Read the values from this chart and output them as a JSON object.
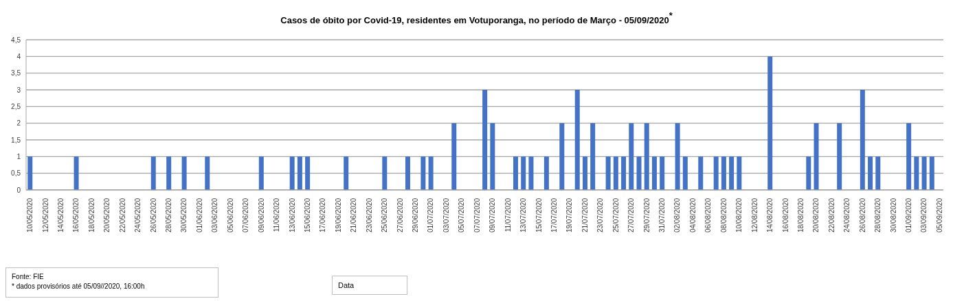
{
  "chart_data": {
    "type": "bar",
    "title": "Casos de óbito por Covid-19, residentes em Votuporanga, no período de Março - 05/09/2020$^{*}$",
    "annotations": [
      "Fonte: FIE",
      "* dados provisórios até  05/09//2020, 16:00h",
      "Data"
    ],
    "categories": [
      "10/05/2020",
      null,
      "12/05/2020",
      null,
      "14/05/2020",
      null,
      "16/05/2020",
      null,
      "18/05/2020",
      null,
      "20/05/2020",
      null,
      "22/05/2020",
      null,
      "24/05/2020",
      null,
      "26/05/2020",
      null,
      "28/05/2020",
      null,
      "30/05/2020",
      null,
      "01/06/2020",
      null,
      "03/06/2020",
      null,
      "05/06/2020",
      null,
      "07/06/2020",
      null,
      "09/06/2020",
      null,
      "11/06/2020",
      null,
      "13/06/2020",
      null,
      "15/06/2020",
      null,
      "17/06/2020",
      null,
      "19/06/2020",
      null,
      "21/06/2020",
      null,
      "23/06/2020",
      null,
      "25/06/2020",
      null,
      "27/06/2020",
      null,
      "29/06/2020",
      null,
      "01/07/2020",
      null,
      "03/07/2020",
      null,
      "05/07/2020",
      null,
      "07/07/2020",
      null,
      "09/07/2020",
      null,
      "11/07/2020",
      null,
      "13/07/2020",
      null,
      "15/07/2020",
      null,
      "17/07/2020",
      null,
      "19/07/2020",
      null,
      "21/07/2020",
      null,
      "23/07/2020",
      null,
      "25/07/2020",
      null,
      "27/07/2020",
      null,
      "29/07/2020",
      null,
      "31/07/2020",
      null,
      "02/08/2020",
      null,
      "04/08/2020",
      null,
      "06/08/2020",
      null,
      "08/08/2020",
      null,
      "10/08/2020",
      null,
      "12/08/2020",
      null,
      "14/08/2020",
      null,
      "16/08/2020",
      null,
      "18/08/2020",
      null,
      "20/08/2020",
      null,
      "22/08/2020",
      null,
      "24/08/2020",
      null,
      "26/08/2020",
      null,
      "28/08/2020",
      null,
      "30/08/2020",
      null,
      "01/09/2020",
      null,
      "03/09/2020",
      null,
      "05/09/2020"
    ],
    "values": [
      1,
      0,
      0,
      0,
      0,
      0,
      1,
      0,
      0,
      0,
      0,
      0,
      0,
      0,
      0,
      0,
      1,
      0,
      1,
      0,
      1,
      0,
      0,
      1,
      0,
      0,
      0,
      0,
      0,
      0,
      1,
      0,
      0,
      0,
      1,
      1,
      1,
      0,
      0,
      0,
      0,
      1,
      0,
      0,
      0,
      0,
      1,
      0,
      0,
      1,
      0,
      1,
      1,
      0,
      0,
      2,
      0,
      0,
      0,
      3,
      2,
      0,
      0,
      1,
      1,
      1,
      0,
      1,
      0,
      2,
      0,
      3,
      1,
      2,
      0,
      1,
      1,
      1,
      2,
      1,
      2,
      1,
      1,
      0,
      2,
      1,
      0,
      1,
      0,
      1,
      1,
      1,
      1,
      0,
      0,
      0,
      4,
      0,
      0,
      0,
      0,
      1,
      2,
      0,
      0,
      2,
      0,
      0,
      3,
      1,
      1,
      0,
      0,
      0,
      2,
      1,
      1,
      1,
      0
    ],
    "color": "#4472c4",
    "ylim": [
      0,
      4.5
    ],
    "yticks": [
      0,
      {
        "value": 0.5,
        "label": "0,5"
      },
      1,
      {
        "value": 1.5,
        "label": "1,5"
      },
      2,
      {
        "value": 2.5,
        "label": "2,5"
      },
      3,
      {
        "value": 3.5,
        "label": "3,5"
      },
      4,
      {
        "value": 4.5,
        "label": "4,5"
      }
    ],
    "grid": "y"
  }
}
